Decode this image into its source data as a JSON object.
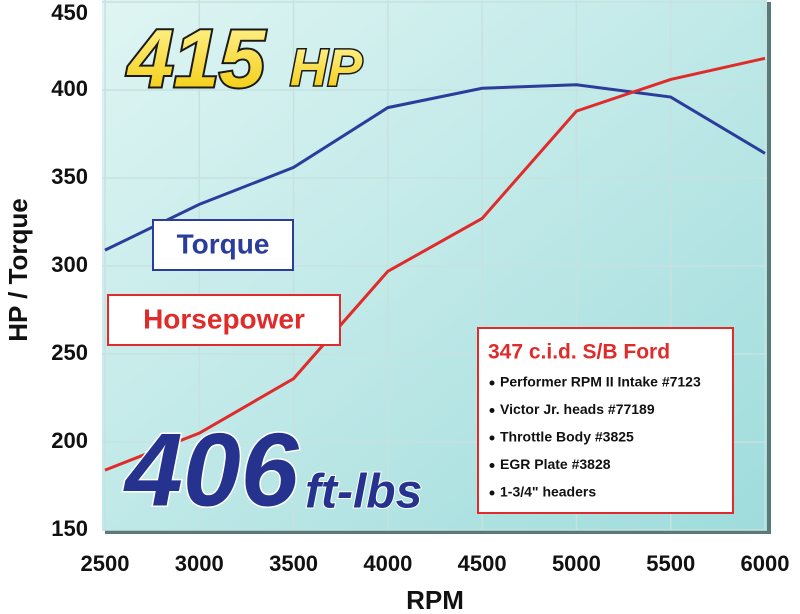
{
  "chart_data": {
    "type": "line",
    "x": [
      2500,
      3000,
      3500,
      4000,
      4500,
      5000,
      5500,
      6000
    ],
    "series": [
      {
        "name": "Torque",
        "color": "#2b3d9b",
        "values": [
          309,
          335,
          356,
          390,
          401,
          403,
          396,
          364
        ]
      },
      {
        "name": "Horsepower",
        "color": "#e02b2b",
        "values": [
          184,
          205,
          236,
          297,
          327,
          388,
          406,
          418
        ]
      }
    ],
    "xlim": [
      2500,
      6000
    ],
    "xticks": [
      2500,
      3000,
      3500,
      4000,
      4500,
      5000,
      5500,
      6000
    ],
    "ylim": [
      150,
      450
    ],
    "yticks": [
      150,
      200,
      250,
      300,
      350,
      400,
      450
    ],
    "grid": true,
    "x_label": "RPM",
    "y_label": "HP / Torque",
    "hp_badge": {
      "number": "415",
      "unit": "HP"
    },
    "torque_badge": {
      "number": "406",
      "unit": "ft-lbs"
    },
    "spec_box": {
      "title": "347 c.i.d. S/B Ford",
      "items": [
        "Performer RPM II Intake #7123",
        "Victor Jr. heads #77189",
        "Throttle Body #3825",
        "EGR Plate #3828",
        "1-3/4\" headers"
      ]
    }
  }
}
